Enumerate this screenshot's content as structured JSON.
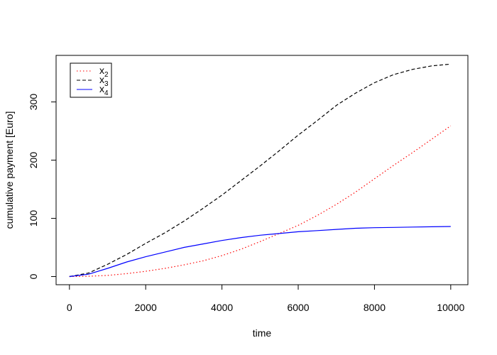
{
  "chart_data": {
    "type": "line",
    "xlabel": "time",
    "ylabel": "cumulative payment [Euro]",
    "xlim": [
      -350,
      10450
    ],
    "ylim": [
      -14,
      380
    ],
    "xticks": [
      0,
      2000,
      4000,
      6000,
      8000,
      10000
    ],
    "yticks": [
      0,
      100,
      200,
      300
    ],
    "grid": false,
    "legend_position": "top-left",
    "series": [
      {
        "name": "x2",
        "label_base": "x",
        "label_sub": "2",
        "color": "#ff0000",
        "line_style": "dotted",
        "x": [
          0,
          500,
          1000,
          1500,
          2000,
          2500,
          3000,
          3500,
          4000,
          4500,
          5000,
          5500,
          6000,
          6500,
          7000,
          7500,
          8000,
          8500,
          9000,
          9500,
          10000
        ],
        "y": [
          0,
          0.5,
          2,
          5,
          9,
          14,
          20,
          27,
          36,
          47,
          60,
          74,
          88,
          105,
          124,
          145,
          168,
          191,
          213,
          236,
          259
        ]
      },
      {
        "name": "x3",
        "label_base": "x",
        "label_sub": "3",
        "color": "#000000",
        "line_style": "dashed",
        "x": [
          0,
          500,
          1000,
          1500,
          2000,
          2500,
          3000,
          3500,
          4000,
          4500,
          5000,
          5500,
          6000,
          6500,
          7000,
          7500,
          8000,
          8500,
          9000,
          9500,
          10000
        ],
        "y": [
          0,
          6,
          21,
          38,
          57,
          75,
          95,
          117,
          140,
          165,
          190,
          216,
          243,
          268,
          294,
          315,
          333,
          347,
          356,
          362,
          365
        ]
      },
      {
        "name": "x4",
        "label_base": "x",
        "label_sub": "4",
        "color": "#0000ff",
        "line_style": "solid",
        "x": [
          0,
          500,
          1000,
          1500,
          2000,
          2500,
          3000,
          3500,
          4000,
          4500,
          5000,
          5500,
          6000,
          6500,
          7000,
          7500,
          8000,
          8500,
          9000,
          9500,
          10000
        ],
        "y": [
          0,
          4,
          14,
          25,
          34,
          42,
          50,
          56,
          62,
          67,
          71,
          74,
          77,
          79,
          81,
          83,
          84,
          84.5,
          85,
          85.5,
          86
        ]
      }
    ]
  }
}
